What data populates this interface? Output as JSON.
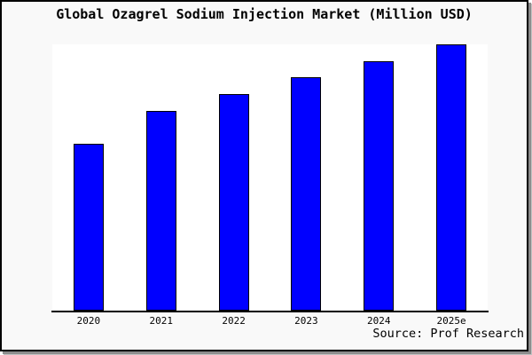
{
  "colors": {
    "bar_fill": "#0000FF",
    "bar_border": "#000000",
    "background": "#F9F9F9",
    "plot_background": "#FFFFFF",
    "axis": "#000000",
    "shadow_dark": "#8C8C8C",
    "shadow_light": "#C2C2C2"
  },
  "chart_data": {
    "type": "bar",
    "title": "Global Ozagrel Sodium Injection Market (Million USD)",
    "categories": [
      "2020",
      "2021",
      "2022",
      "2023",
      "2024",
      "2025e"
    ],
    "values": [
      62.7,
      75.0,
      81.3,
      87.7,
      93.7,
      100.0
    ],
    "values_are_estimates": true,
    "xlabel": "",
    "ylabel": "",
    "ylim": [
      0,
      100
    ],
    "grid": false,
    "legend": null,
    "y_axis_shown": false,
    "source": "Source: Prof Research"
  }
}
